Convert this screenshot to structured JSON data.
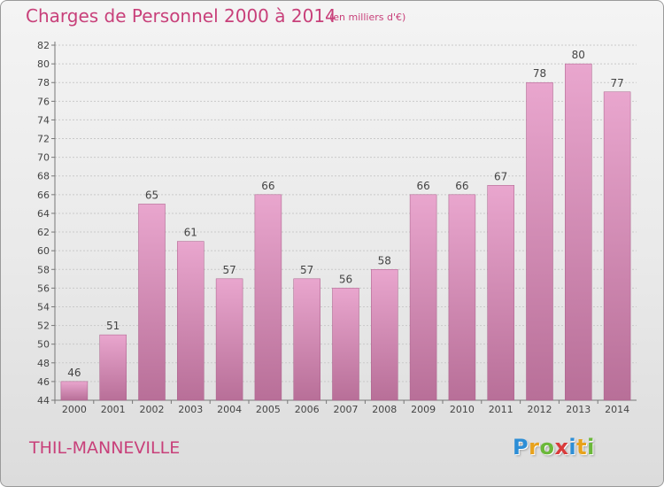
{
  "title": "Charges de Personnel 2000 à 2014",
  "subtitle": "(en milliers d'€)",
  "place": "THIL-MANNEVILLE",
  "logo": {
    "letters": [
      {
        "ch": "P",
        "color": "#2d8ed6"
      },
      {
        "ch": "r",
        "color": "#e8a21c"
      },
      {
        "ch": "o",
        "color": "#6bb83a"
      },
      {
        "ch": "x",
        "color": "#d93b3b"
      },
      {
        "ch": "i",
        "color": "#2d8ed6"
      },
      {
        "ch": "t",
        "color": "#e8a21c"
      },
      {
        "ch": "i",
        "color": "#6bb83a"
      }
    ]
  },
  "colors": {
    "title": "#c8407a",
    "bar_top": "#e9a6ce",
    "bar_bottom": "#b86f98",
    "bar_stroke": "#a85c88"
  },
  "chart_data": {
    "type": "bar",
    "title": "Charges de Personnel 2000 à 2014",
    "subtitle": "(en milliers d'€)",
    "categories": [
      "2000",
      "2001",
      "2002",
      "2003",
      "2004",
      "2005",
      "2006",
      "2007",
      "2008",
      "2009",
      "2010",
      "2011",
      "2012",
      "2013",
      "2014"
    ],
    "values": [
      46,
      51,
      65,
      61,
      57,
      66,
      57,
      56,
      58,
      66,
      66,
      67,
      78,
      80,
      77
    ],
    "ylim": [
      44,
      82
    ],
    "yticks": [
      44,
      46,
      48,
      50,
      52,
      54,
      56,
      58,
      60,
      62,
      64,
      66,
      68,
      70,
      72,
      74,
      76,
      78,
      80,
      82
    ],
    "grid": "horizontal dashed",
    "legend": "none",
    "data_labels": true
  }
}
